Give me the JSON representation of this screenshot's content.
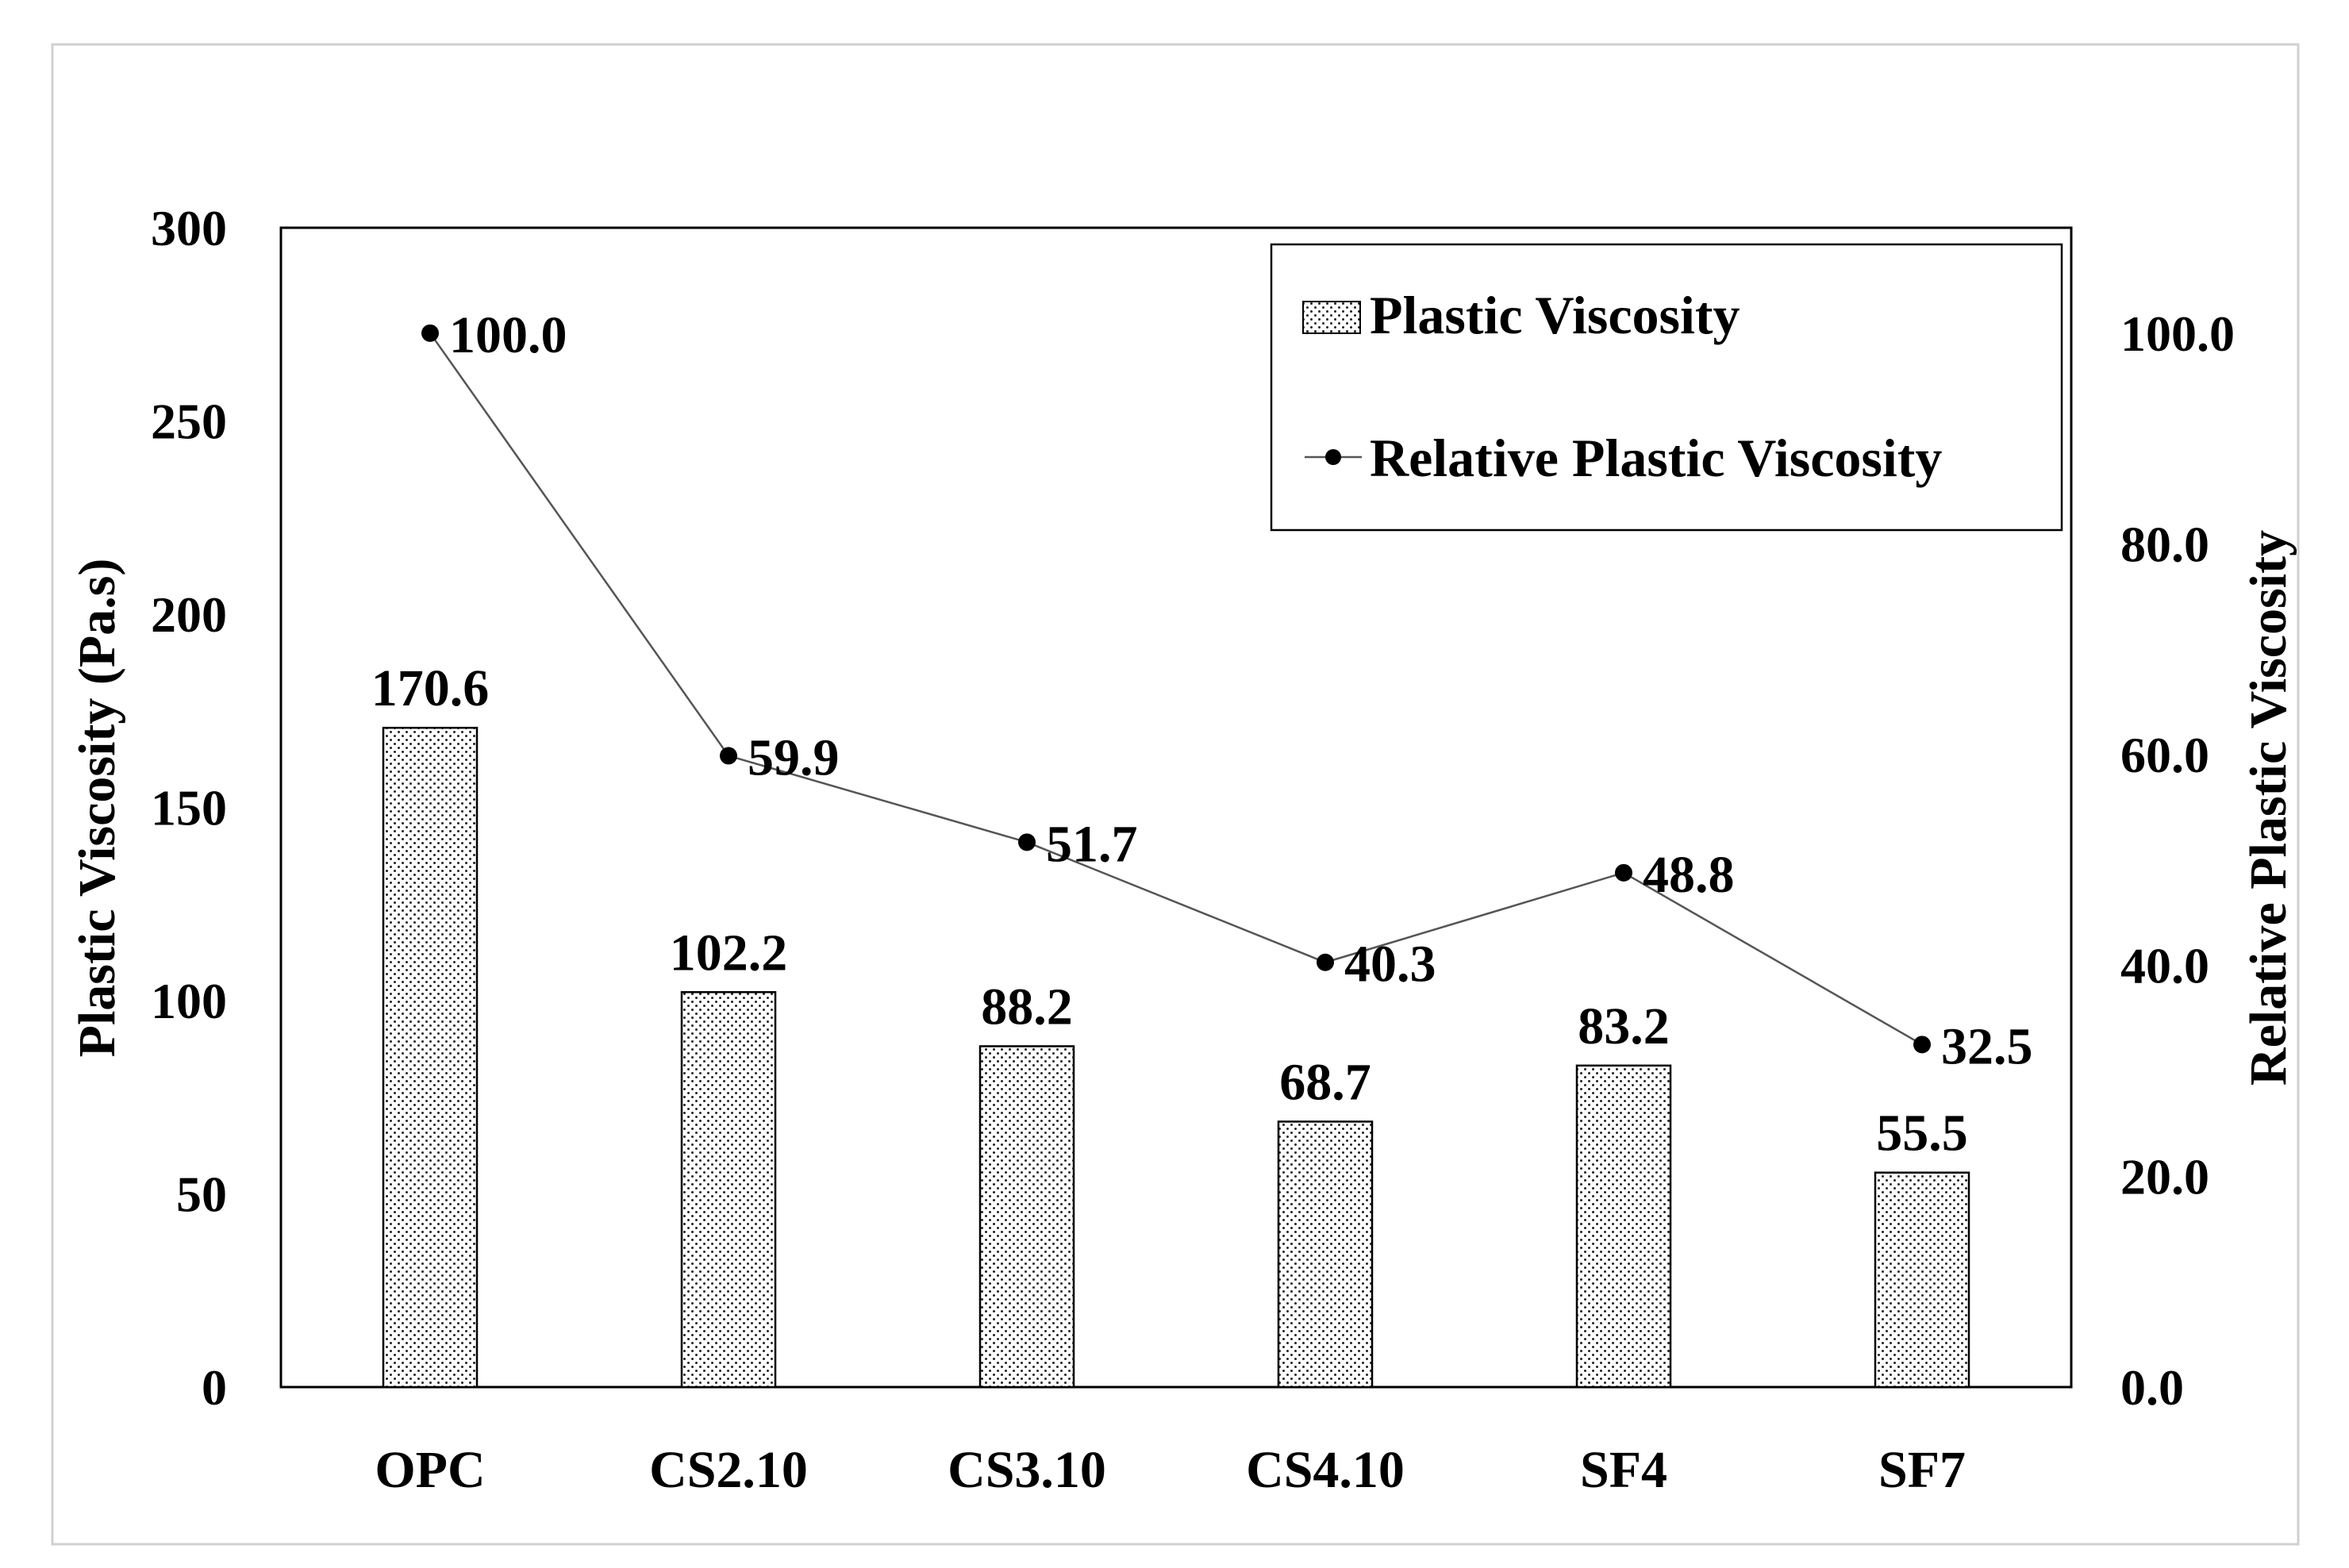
{
  "chart_data": {
    "type": "bar",
    "categories": [
      "OPC",
      "CS2.10",
      "CS3.10",
      "CS4.10",
      "SF4",
      "SF7"
    ],
    "series": [
      {
        "name": "Plastic Viscosity",
        "type": "bar",
        "axis": "left",
        "values": [
          170.6,
          102.2,
          88.2,
          68.7,
          83.2,
          55.5
        ],
        "labels": [
          "170.6",
          "102.2",
          "88.2",
          "68.7",
          "83.2",
          "55.5"
        ]
      },
      {
        "name": "Relative Plastic Viscosity",
        "type": "line",
        "axis": "right",
        "values": [
          100.0,
          59.9,
          51.7,
          40.3,
          48.8,
          32.5
        ],
        "labels": [
          "100.0",
          "59.9",
          "51.7",
          "40.3",
          "48.8",
          "32.5"
        ]
      }
    ],
    "ylabel": "Plastic Viscosity (Pa.s)",
    "y2label": "Relative Plastic Viscosity",
    "xlabel": "",
    "ylim": [
      0,
      300
    ],
    "y2lim": [
      0,
      110
    ],
    "yticks": [
      "0",
      "50",
      "100",
      "150",
      "200",
      "250",
      "300"
    ],
    "y2ticks": [
      "0.0",
      "20.0",
      "40.0",
      "60.0",
      "80.0",
      "100.0"
    ],
    "grid": false,
    "legend_position": "top-right"
  }
}
